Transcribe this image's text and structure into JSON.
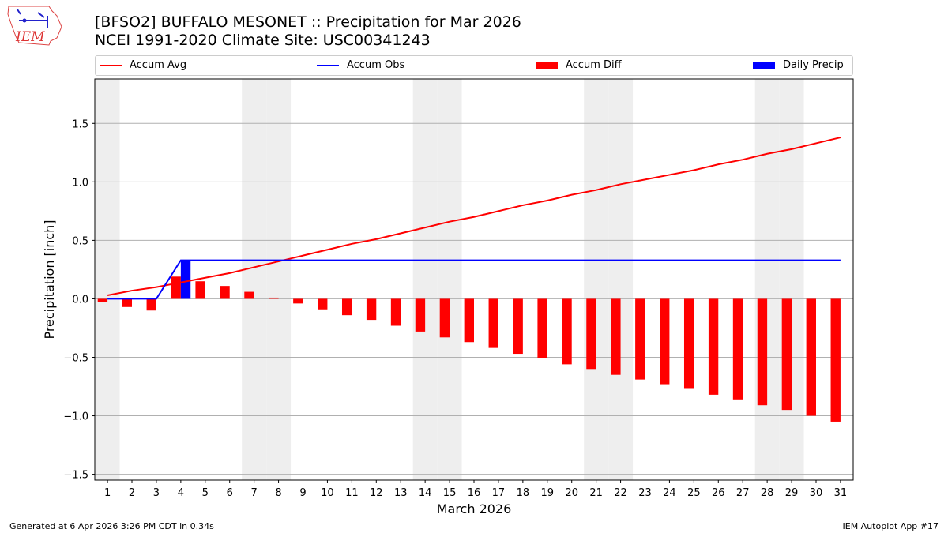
{
  "header": {
    "title": "[BFSO2] BUFFALO MESONET :: Precipitation for Mar 2026",
    "subtitle": "NCEI 1991-2020 Climate Site: USC00341243",
    "logo_text": "IEM"
  },
  "footer": {
    "left": "Generated at 6 Apr 2026 3:26 PM CDT in 0.34s",
    "right": "IEM Autoplot App #17"
  },
  "chart_data": {
    "type": "bar",
    "title": "[BFSO2] BUFFALO MESONET :: Precipitation for Mar 2026",
    "xlabel": "March 2026",
    "ylabel": "Precipitation [inch]",
    "x": [
      1,
      2,
      3,
      4,
      5,
      6,
      7,
      8,
      9,
      10,
      11,
      12,
      13,
      14,
      15,
      16,
      17,
      18,
      19,
      20,
      21,
      22,
      23,
      24,
      25,
      26,
      27,
      28,
      29,
      30,
      31
    ],
    "xlim": [
      0.48,
      31.52
    ],
    "ylim": [
      -1.55,
      1.88
    ],
    "yticks": [
      -1.5,
      -1.0,
      -0.5,
      0.0,
      0.5,
      1.0,
      1.5
    ],
    "ytick_labels": [
      "−1.5",
      "−1.0",
      "−0.5",
      "0.0",
      "0.5",
      "1.0",
      "1.5"
    ],
    "grid": "y",
    "legend_placement": "top",
    "weekend_days": [
      1,
      7,
      8,
      14,
      15,
      21,
      22,
      28,
      29
    ],
    "weekend_color": "#eeeeee",
    "series": [
      {
        "name": "Accum Avg",
        "kind": "line",
        "color": "#ff0000",
        "values": [
          0.03,
          0.07,
          0.1,
          0.14,
          0.18,
          0.22,
          0.27,
          0.32,
          0.37,
          0.42,
          0.47,
          0.51,
          0.56,
          0.61,
          0.66,
          0.7,
          0.75,
          0.8,
          0.84,
          0.89,
          0.93,
          0.98,
          1.02,
          1.06,
          1.1,
          1.15,
          1.19,
          1.24,
          1.28,
          1.33,
          1.38
        ]
      },
      {
        "name": "Accum Obs",
        "kind": "line",
        "color": "#0000ff",
        "values": [
          0,
          0,
          0,
          0.33,
          0.33,
          0.33,
          0.33,
          0.33,
          0.33,
          0.33,
          0.33,
          0.33,
          0.33,
          0.33,
          0.33,
          0.33,
          0.33,
          0.33,
          0.33,
          0.33,
          0.33,
          0.33,
          0.33,
          0.33,
          0.33,
          0.33,
          0.33,
          0.33,
          0.33,
          0.33,
          0.33
        ]
      },
      {
        "name": "Accum Diff",
        "kind": "bar",
        "color": "#ff0000",
        "values": [
          -0.03,
          -0.07,
          -0.1,
          0.19,
          0.15,
          0.11,
          0.06,
          0.01,
          -0.04,
          -0.09,
          -0.14,
          -0.18,
          -0.23,
          -0.28,
          -0.33,
          -0.37,
          -0.42,
          -0.47,
          -0.51,
          -0.56,
          -0.6,
          -0.65,
          -0.69,
          -0.73,
          -0.77,
          -0.82,
          -0.86,
          -0.91,
          -0.95,
          -1.0,
          -1.05
        ]
      },
      {
        "name": "Daily Precip",
        "kind": "bar",
        "color": "#0000ff",
        "values": [
          0,
          0,
          0,
          0.33,
          0,
          0,
          0,
          0,
          0,
          0,
          0,
          0,
          0,
          0,
          0,
          0,
          0,
          0,
          0,
          0,
          0,
          0,
          0,
          0,
          0,
          0,
          0,
          0,
          0,
          0,
          0
        ]
      }
    ]
  }
}
